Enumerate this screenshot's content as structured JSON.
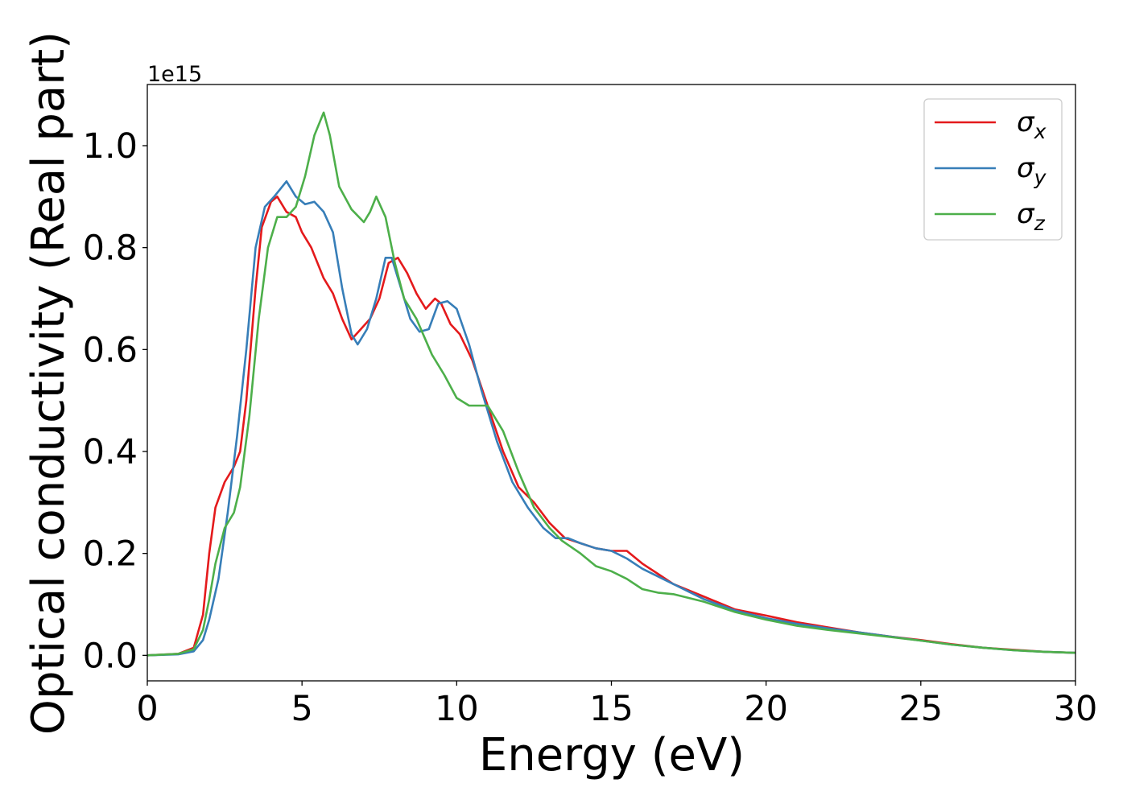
{
  "chart_data": {
    "type": "line",
    "xlabel": "Energy (eV)",
    "ylabel": "Optical conductivity (Real part)",
    "y_offset_label": "1e15",
    "xlim": [
      0,
      30
    ],
    "ylim": [
      -0.05,
      1.12
    ],
    "x_ticks": [
      0,
      5,
      10,
      15,
      20,
      25,
      30
    ],
    "x_tick_labels": [
      "0",
      "5",
      "10",
      "15",
      "20",
      "25",
      "30"
    ],
    "y_ticks": [
      0.0,
      0.2,
      0.4,
      0.6,
      0.8,
      1.0
    ],
    "y_tick_labels": [
      "0.0",
      "0.2",
      "0.4",
      "0.6",
      "0.8",
      "1.0"
    ],
    "grid": false,
    "legend_position": "top-right",
    "series": [
      {
        "name": "σx",
        "legend_symbol": "σ",
        "legend_subscript": "x",
        "color": "#e41a1c",
        "points": [
          [
            0,
            0.0
          ],
          [
            1.0,
            0.003
          ],
          [
            1.5,
            0.015
          ],
          [
            1.8,
            0.08
          ],
          [
            2.0,
            0.2
          ],
          [
            2.2,
            0.29
          ],
          [
            2.5,
            0.34
          ],
          [
            2.8,
            0.37
          ],
          [
            3.0,
            0.4
          ],
          [
            3.2,
            0.5
          ],
          [
            3.5,
            0.72
          ],
          [
            3.7,
            0.84
          ],
          [
            4.0,
            0.89
          ],
          [
            4.2,
            0.9
          ],
          [
            4.5,
            0.87
          ],
          [
            4.8,
            0.86
          ],
          [
            5.0,
            0.83
          ],
          [
            5.3,
            0.8
          ],
          [
            5.7,
            0.74
          ],
          [
            6.0,
            0.71
          ],
          [
            6.3,
            0.66
          ],
          [
            6.6,
            0.62
          ],
          [
            6.9,
            0.64
          ],
          [
            7.2,
            0.66
          ],
          [
            7.5,
            0.7
          ],
          [
            7.8,
            0.77
          ],
          [
            8.1,
            0.78
          ],
          [
            8.4,
            0.75
          ],
          [
            8.7,
            0.71
          ],
          [
            9.0,
            0.68
          ],
          [
            9.3,
            0.7
          ],
          [
            9.5,
            0.69
          ],
          [
            9.8,
            0.65
          ],
          [
            10.1,
            0.63
          ],
          [
            10.5,
            0.58
          ],
          [
            11.0,
            0.49
          ],
          [
            11.5,
            0.4
          ],
          [
            12.0,
            0.33
          ],
          [
            12.5,
            0.3
          ],
          [
            13.0,
            0.26
          ],
          [
            13.5,
            0.23
          ],
          [
            14.0,
            0.22
          ],
          [
            14.5,
            0.21
          ],
          [
            15.0,
            0.205
          ],
          [
            15.5,
            0.205
          ],
          [
            16.0,
            0.18
          ],
          [
            16.5,
            0.16
          ],
          [
            17.0,
            0.14
          ],
          [
            18.0,
            0.115
          ],
          [
            19.0,
            0.09
          ],
          [
            20.0,
            0.078
          ],
          [
            21.0,
            0.065
          ],
          [
            22.0,
            0.055
          ],
          [
            23.0,
            0.045
          ],
          [
            24.0,
            0.037
          ],
          [
            25.0,
            0.03
          ],
          [
            26.0,
            0.022
          ],
          [
            27.0,
            0.015
          ],
          [
            28.0,
            0.011
          ],
          [
            29.0,
            0.007
          ],
          [
            30.0,
            0.005
          ]
        ]
      },
      {
        "name": "σy",
        "legend_symbol": "σ",
        "legend_subscript": "y",
        "color": "#377eb8",
        "points": [
          [
            0,
            0.0
          ],
          [
            1.0,
            0.002
          ],
          [
            1.5,
            0.008
          ],
          [
            1.8,
            0.03
          ],
          [
            2.0,
            0.07
          ],
          [
            2.3,
            0.15
          ],
          [
            2.6,
            0.28
          ],
          [
            2.9,
            0.43
          ],
          [
            3.2,
            0.6
          ],
          [
            3.5,
            0.8
          ],
          [
            3.8,
            0.88
          ],
          [
            4.1,
            0.9
          ],
          [
            4.5,
            0.93
          ],
          [
            4.8,
            0.9
          ],
          [
            5.1,
            0.885
          ],
          [
            5.4,
            0.89
          ],
          [
            5.7,
            0.87
          ],
          [
            6.0,
            0.83
          ],
          [
            6.3,
            0.72
          ],
          [
            6.6,
            0.63
          ],
          [
            6.8,
            0.61
          ],
          [
            7.1,
            0.64
          ],
          [
            7.4,
            0.7
          ],
          [
            7.7,
            0.78
          ],
          [
            7.9,
            0.78
          ],
          [
            8.2,
            0.72
          ],
          [
            8.5,
            0.66
          ],
          [
            8.8,
            0.635
          ],
          [
            9.1,
            0.64
          ],
          [
            9.4,
            0.69
          ],
          [
            9.7,
            0.695
          ],
          [
            10.0,
            0.68
          ],
          [
            10.4,
            0.61
          ],
          [
            10.8,
            0.52
          ],
          [
            11.3,
            0.42
          ],
          [
            11.8,
            0.34
          ],
          [
            12.3,
            0.29
          ],
          [
            12.8,
            0.25
          ],
          [
            13.2,
            0.23
          ],
          [
            13.6,
            0.23
          ],
          [
            14.0,
            0.22
          ],
          [
            14.5,
            0.21
          ],
          [
            15.0,
            0.205
          ],
          [
            15.5,
            0.19
          ],
          [
            16.0,
            0.17
          ],
          [
            16.5,
            0.155
          ],
          [
            17.0,
            0.14
          ],
          [
            18.0,
            0.11
          ],
          [
            19.0,
            0.088
          ],
          [
            20.0,
            0.073
          ],
          [
            21.0,
            0.062
          ],
          [
            22.0,
            0.053
          ],
          [
            23.0,
            0.045
          ],
          [
            24.0,
            0.037
          ],
          [
            25.0,
            0.029
          ],
          [
            26.0,
            0.021
          ],
          [
            27.0,
            0.015
          ],
          [
            28.0,
            0.01
          ],
          [
            29.0,
            0.007
          ],
          [
            30.0,
            0.005
          ]
        ]
      },
      {
        "name": "σz",
        "legend_symbol": "σ",
        "legend_subscript": "z",
        "color": "#4daf4a",
        "points": [
          [
            0,
            0.0
          ],
          [
            1.0,
            0.003
          ],
          [
            1.5,
            0.012
          ],
          [
            1.8,
            0.05
          ],
          [
            2.0,
            0.11
          ],
          [
            2.2,
            0.18
          ],
          [
            2.5,
            0.25
          ],
          [
            2.8,
            0.28
          ],
          [
            3.0,
            0.33
          ],
          [
            3.3,
            0.47
          ],
          [
            3.6,
            0.66
          ],
          [
            3.9,
            0.8
          ],
          [
            4.2,
            0.86
          ],
          [
            4.5,
            0.86
          ],
          [
            4.8,
            0.88
          ],
          [
            5.1,
            0.94
          ],
          [
            5.4,
            1.02
          ],
          [
            5.7,
            1.065
          ],
          [
            5.9,
            1.02
          ],
          [
            6.2,
            0.92
          ],
          [
            6.6,
            0.875
          ],
          [
            7.0,
            0.85
          ],
          [
            7.2,
            0.87
          ],
          [
            7.4,
            0.9
          ],
          [
            7.7,
            0.86
          ],
          [
            8.0,
            0.77
          ],
          [
            8.3,
            0.7
          ],
          [
            8.7,
            0.66
          ],
          [
            9.2,
            0.59
          ],
          [
            9.6,
            0.55
          ],
          [
            10.0,
            0.505
          ],
          [
            10.4,
            0.49
          ],
          [
            11.0,
            0.49
          ],
          [
            11.5,
            0.44
          ],
          [
            12.0,
            0.36
          ],
          [
            12.5,
            0.29
          ],
          [
            13.0,
            0.25
          ],
          [
            13.4,
            0.225
          ],
          [
            14.0,
            0.2
          ],
          [
            14.5,
            0.175
          ],
          [
            15.0,
            0.165
          ],
          [
            15.5,
            0.15
          ],
          [
            16.0,
            0.13
          ],
          [
            16.5,
            0.123
          ],
          [
            17.0,
            0.12
          ],
          [
            18.0,
            0.105
          ],
          [
            19.0,
            0.085
          ],
          [
            20.0,
            0.07
          ],
          [
            21.0,
            0.058
          ],
          [
            22.0,
            0.05
          ],
          [
            23.0,
            0.043
          ],
          [
            24.0,
            0.036
          ],
          [
            25.0,
            0.029
          ],
          [
            26.0,
            0.021
          ],
          [
            27.0,
            0.015
          ],
          [
            28.0,
            0.01
          ],
          [
            29.0,
            0.007
          ],
          [
            30.0,
            0.005
          ]
        ]
      }
    ]
  }
}
